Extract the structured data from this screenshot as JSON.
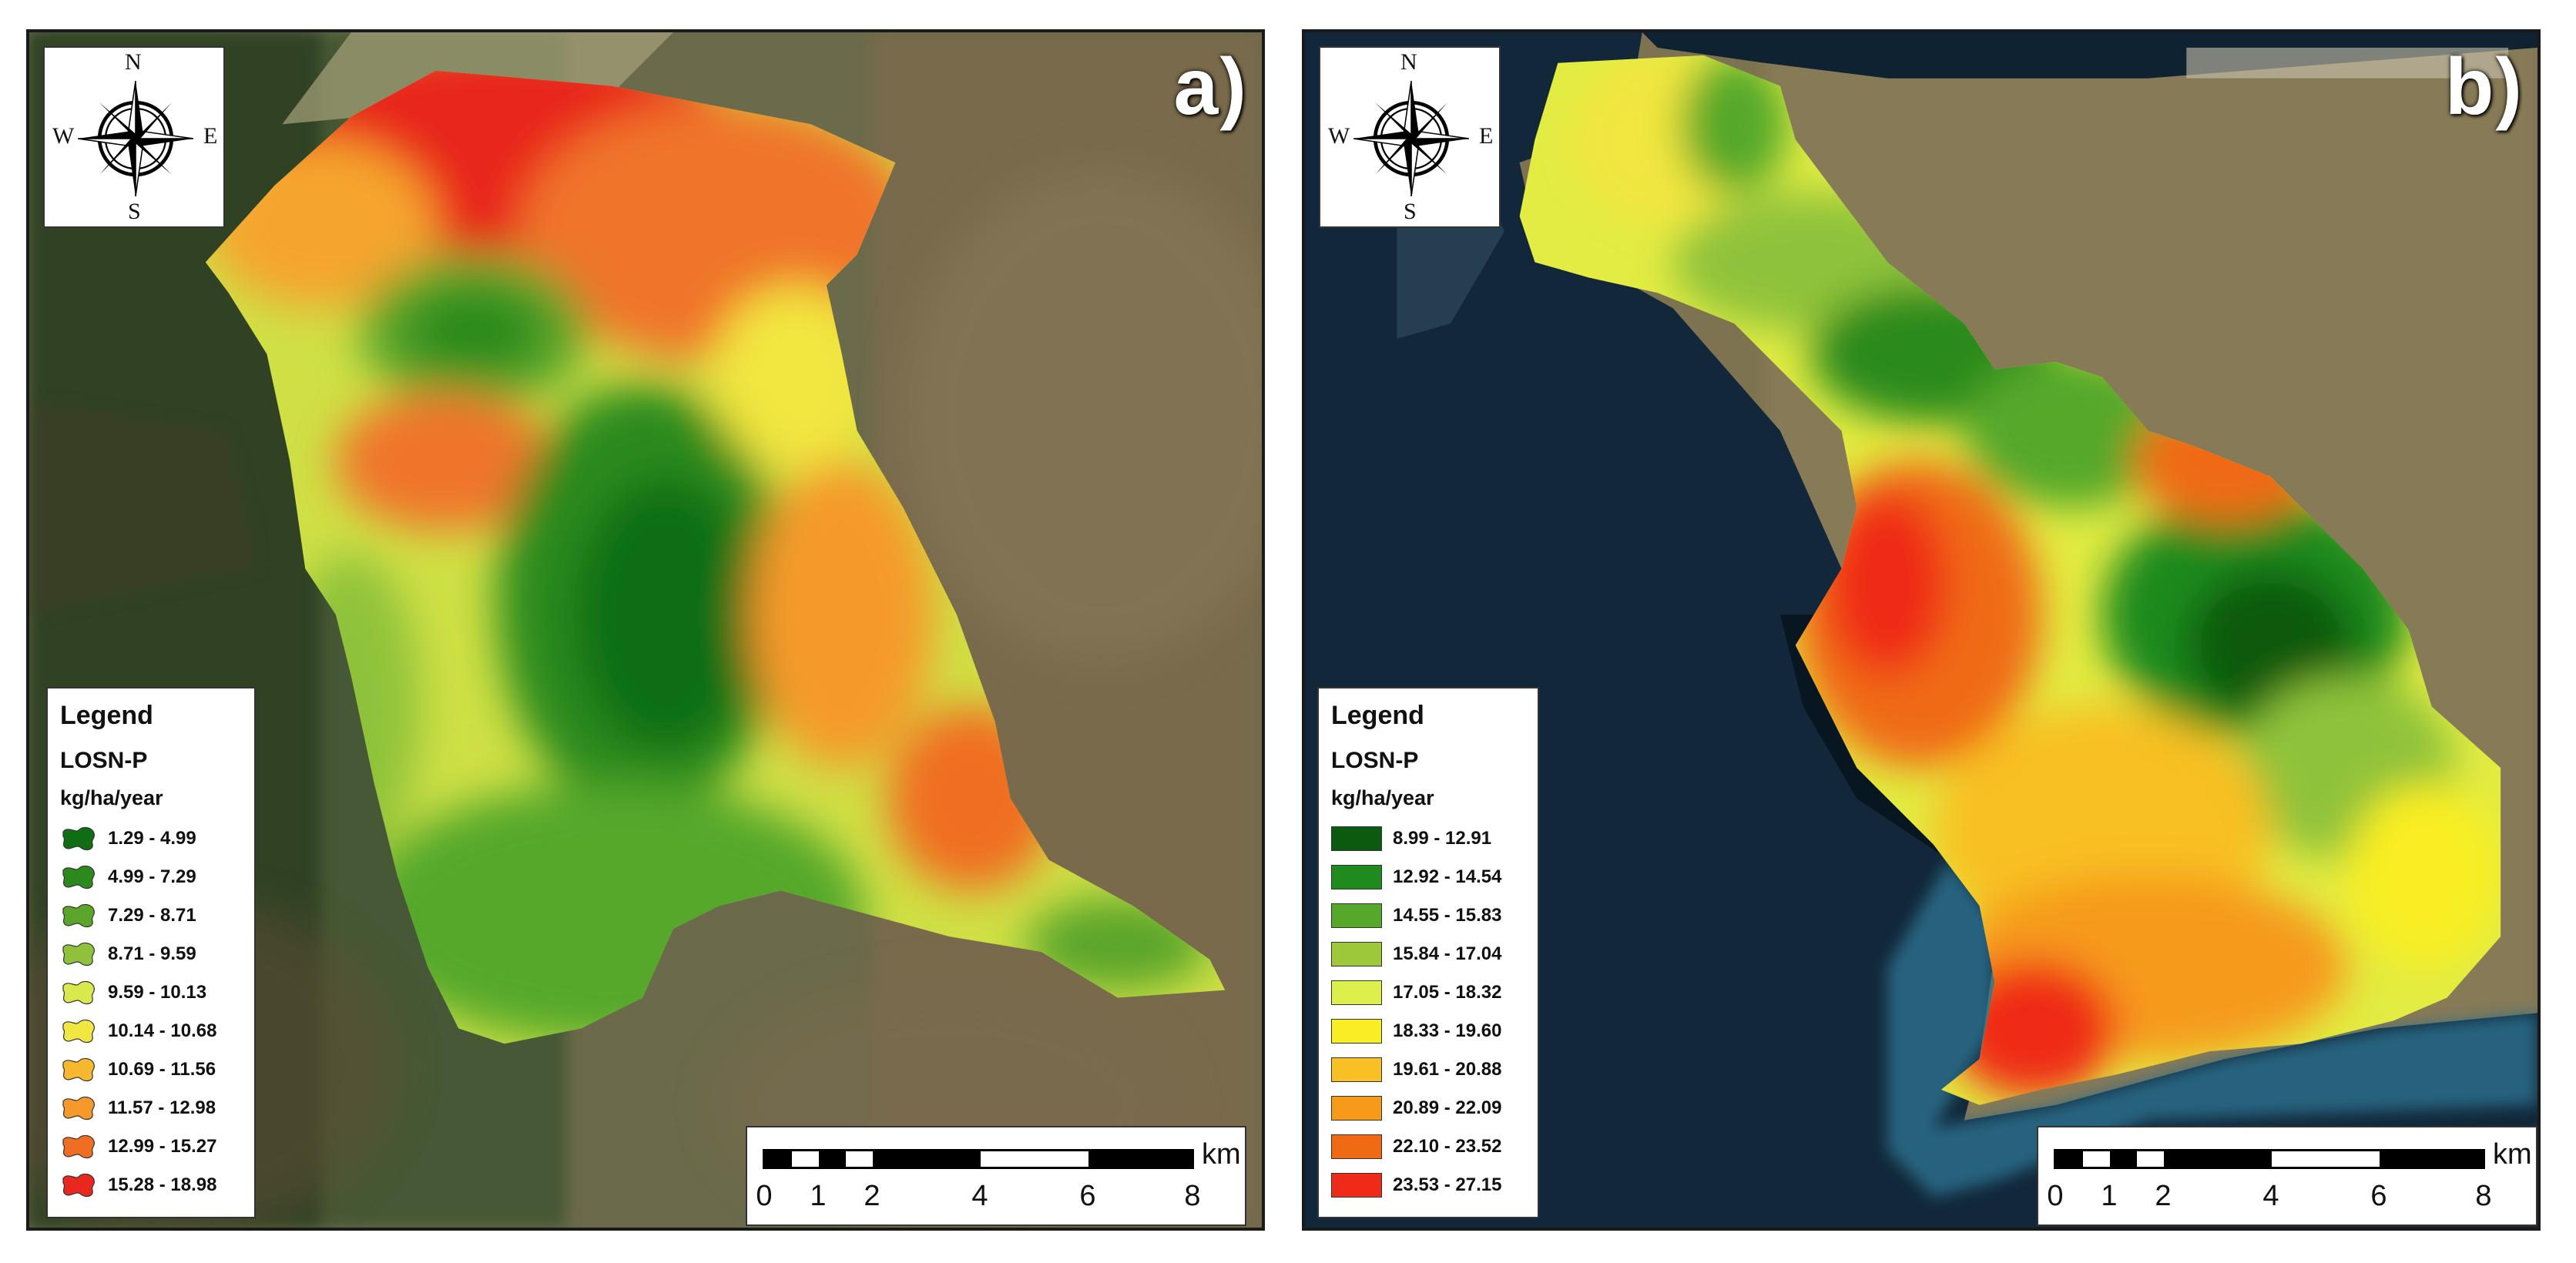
{
  "panels": [
    {
      "label": "a)",
      "compass": {
        "n": "N",
        "s": "S",
        "w": "W",
        "e": "E"
      },
      "legend": {
        "title": "Legend",
        "layer": "LOSN-P",
        "unit": "kg/ha/year",
        "classes": [
          {
            "label": "1.29 - 4.99",
            "color": "#0f6e14"
          },
          {
            "label": "4.99 - 7.29",
            "color": "#2c8a1c"
          },
          {
            "label": "7.29 - 8.71",
            "color": "#5aa52a"
          },
          {
            "label": "8.71 - 9.59",
            "color": "#8fc23a"
          },
          {
            "label": "9.59 - 10.13",
            "color": "#d9e84a"
          },
          {
            "label": "10.14 - 10.68",
            "color": "#f2e640"
          },
          {
            "label": "10.69 - 11.56",
            "color": "#f5b82e"
          },
          {
            "label": "11.57 - 12.98",
            "color": "#f59a2a"
          },
          {
            "label": "12.99 - 15.27",
            "color": "#f06e22"
          },
          {
            "label": "15.28 - 18.98",
            "color": "#e8281e"
          }
        ]
      },
      "scalebar": {
        "unit": "km",
        "ticks": [
          "0",
          "1",
          "2",
          "4",
          "6",
          "8"
        ]
      }
    },
    {
      "label": "b)",
      "compass": {
        "n": "N",
        "s": "S",
        "w": "W",
        "e": "E"
      },
      "legend": {
        "title": "Legend",
        "layer": "LOSN-P",
        "unit": "kg/ha/year",
        "classes": [
          {
            "label": "8.99 - 12.91",
            "color": "#0b5a10"
          },
          {
            "label": "12.92 - 14.54",
            "color": "#1f8a1e"
          },
          {
            "label": "14.55 - 15.83",
            "color": "#55a82a"
          },
          {
            "label": "15.84 - 17.04",
            "color": "#9cc83a"
          },
          {
            "label": "17.05 - 18.32",
            "color": "#dcef4a"
          },
          {
            "label": "18.33 - 19.60",
            "color": "#f9ee24"
          },
          {
            "label": "19.61 - 20.88",
            "color": "#f8c024"
          },
          {
            "label": "20.89 - 22.09",
            "color": "#f69a1a"
          },
          {
            "label": "22.10 - 23.52",
            "color": "#f06a14"
          },
          {
            "label": "23.53 - 27.15",
            "color": "#ef2a18"
          }
        ]
      },
      "scalebar": {
        "unit": "km",
        "ticks": [
          "0",
          "1",
          "2",
          "4",
          "6",
          "8"
        ]
      }
    }
  ]
}
